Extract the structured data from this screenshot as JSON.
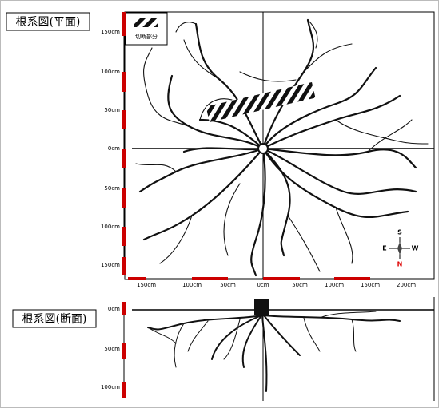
{
  "plan": {
    "title": "根系図(平面)",
    "cut_label": "切断部分",
    "y_labels": [
      "150cm",
      "100cm",
      "50cm",
      "0cm",
      "50cm",
      "100cm",
      "150cm"
    ],
    "x_labels": [
      "150cm",
      "100cm",
      "50cm",
      "0cm",
      "50cm",
      "100cm",
      "150cm",
      "200cm"
    ],
    "compass": {
      "s": "S",
      "e": "E",
      "w": "W",
      "n": "N"
    }
  },
  "section": {
    "title": "根系図(断面)",
    "y_labels": [
      "0cm",
      "50cm",
      "100cm"
    ]
  }
}
